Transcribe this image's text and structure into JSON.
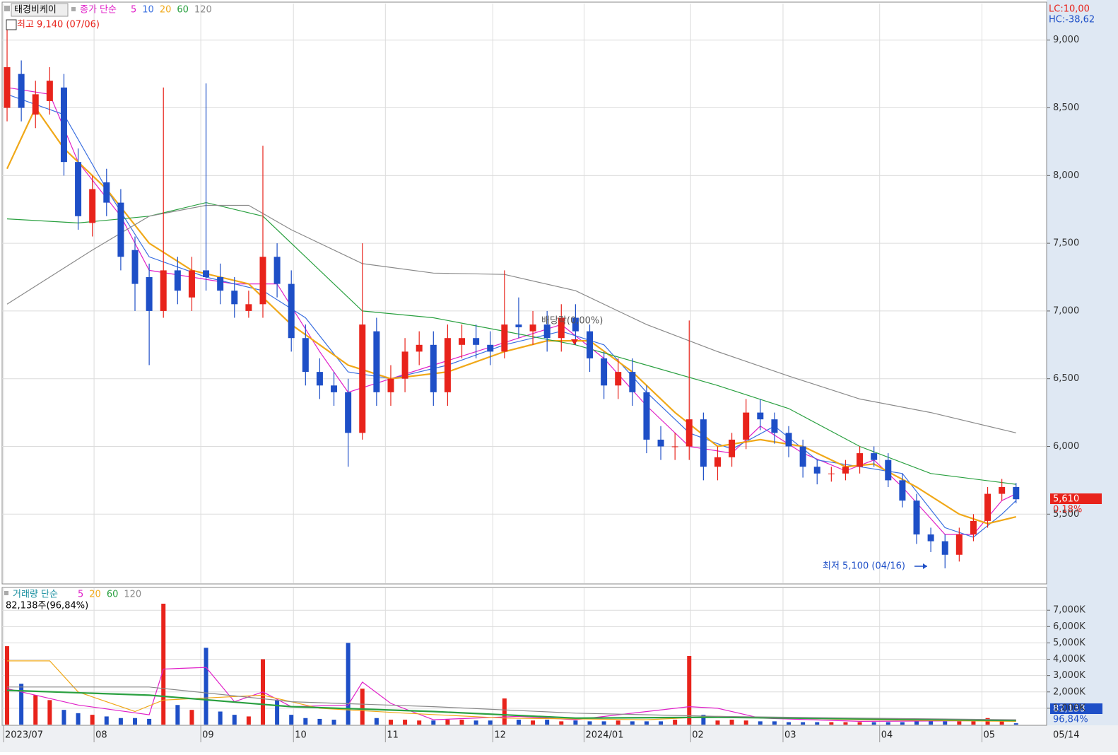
{
  "chart_data": [
    {
      "type": "candlestick",
      "title": "태경비케이",
      "legend_label": "종가 단순",
      "xlim": [
        -0.25,
        73.1
      ],
      "open": [
        8500,
        8750,
        8450,
        8550,
        8650,
        8100,
        7650,
        7950,
        7800,
        7450,
        7250,
        7000,
        7300,
        7100,
        7300,
        7250,
        7150,
        7000,
        7050,
        7400,
        7200,
        6800,
        6550,
        6450,
        6400,
        6100,
        6850,
        6400,
        6500,
        6700,
        6750,
        6400,
        6750,
        6800,
        6750,
        6700,
        6900,
        6850,
        6900,
        6800,
        6950,
        6850,
        6650,
        6450,
        6550,
        6400,
        6050,
        6000,
        6000,
        6200,
        5850,
        5920,
        6050,
        6250,
        6200,
        6100,
        6000,
        5850,
        5800,
        5800,
        5850,
        5950,
        5900,
        5750,
        5600,
        5350,
        5300,
        5200,
        5350,
        5450,
        5650,
        5700
      ],
      "high": [
        9140,
        8850,
        8700,
        8800,
        8750,
        8200,
        8000,
        8050,
        7900,
        7550,
        7350,
        8650,
        7400,
        7400,
        8680,
        7350,
        7250,
        7150,
        8220,
        7500,
        7300,
        6900,
        6650,
        6550,
        6500,
        7500,
        6950,
        6600,
        6800,
        6850,
        6850,
        6900,
        6900,
        6900,
        6850,
        7300,
        7100,
        7000,
        7000,
        7050,
        7050,
        6900,
        6700,
        6650,
        6650,
        6450,
        6150,
        6100,
        6930,
        6250,
        6000,
        6100,
        6350,
        6350,
        6250,
        6150,
        6050,
        5900,
        5850,
        5900,
        6000,
        6000,
        5950,
        5800,
        5650,
        5400,
        5350,
        5400,
        5500,
        5700,
        5760,
        5730
      ],
      "low": [
        8400,
        8400,
        8350,
        8450,
        8000,
        7600,
        7550,
        7700,
        7300,
        7000,
        6600,
        6950,
        7050,
        7000,
        7150,
        7050,
        6950,
        6950,
        6950,
        7100,
        6700,
        6450,
        6350,
        6300,
        5850,
        6050,
        6300,
        6300,
        6400,
        6600,
        6300,
        6300,
        6650,
        6650,
        6600,
        6650,
        6800,
        6750,
        6700,
        6700,
        6750,
        6550,
        6350,
        6350,
        6300,
        5950,
        5900,
        5900,
        5900,
        5750,
        5750,
        5850,
        5980,
        6120,
        6020,
        5920,
        5770,
        5720,
        5740,
        5750,
        5800,
        5850,
        5700,
        5550,
        5280,
        5220,
        5100,
        5150,
        5300,
        5400,
        5600,
        5580
      ],
      "close": [
        8800,
        8500,
        8600,
        8700,
        8100,
        7700,
        7900,
        7800,
        7400,
        7200,
        7000,
        7300,
        7150,
        7300,
        7250,
        7150,
        7050,
        7050,
        7400,
        7200,
        6800,
        6550,
        6450,
        6400,
        6100,
        6900,
        6400,
        6500,
        6700,
        6750,
        6400,
        6800,
        6800,
        6750,
        6700,
        6900,
        6880,
        6900,
        6800,
        6950,
        6850,
        6650,
        6450,
        6550,
        6400,
        6050,
        6000,
        6000,
        6200,
        5850,
        5920,
        6050,
        6250,
        6200,
        6100,
        6000,
        5850,
        5800,
        5800,
        5850,
        5950,
        5900,
        5750,
        5600,
        5350,
        5300,
        5200,
        5350,
        5450,
        5650,
        5700,
        5610
      ],
      "up_color": "#e8231b",
      "down_color": "#1e4fc7",
      "series": [
        {
          "name": "5",
          "color": "#e020c8",
          "x": [
            0,
            3,
            5,
            8,
            10,
            13,
            16,
            19,
            22,
            24,
            27,
            30,
            33,
            36,
            39,
            42,
            45,
            48,
            51,
            53,
            56,
            59,
            61,
            63,
            66,
            68,
            70,
            71
          ],
          "values": [
            8650,
            8600,
            8100,
            7700,
            7300,
            7250,
            7200,
            7200,
            6700,
            6400,
            6500,
            6600,
            6700,
            6800,
            6900,
            6650,
            6300,
            6000,
            5950,
            6150,
            5950,
            5820,
            5900,
            5700,
            5350,
            5350,
            5600,
            5650
          ]
        },
        {
          "name": "10",
          "color": "#3a6fe0",
          "x": [
            0,
            4,
            7,
            10,
            14,
            18,
            21,
            24,
            27,
            31,
            35,
            39,
            42,
            45,
            48,
            51,
            54,
            57,
            60,
            63,
            66,
            68,
            70,
            71
          ],
          "values": [
            8600,
            8450,
            7900,
            7400,
            7250,
            7150,
            6950,
            6550,
            6500,
            6600,
            6750,
            6850,
            6750,
            6400,
            6100,
            5980,
            6150,
            5900,
            5850,
            5800,
            5400,
            5330,
            5500,
            5600
          ]
        },
        {
          "name": "20",
          "color": "#f0a818",
          "x": [
            0,
            2,
            4,
            7,
            10,
            13,
            17,
            20,
            24,
            27,
            31,
            35,
            38,
            41,
            44,
            47,
            50,
            53,
            56,
            59,
            61,
            64,
            67,
            69,
            71
          ],
          "values": [
            8050,
            8500,
            8200,
            7900,
            7500,
            7300,
            7200,
            6900,
            6600,
            6500,
            6550,
            6700,
            6780,
            6780,
            6550,
            6250,
            6000,
            6050,
            6000,
            5850,
            5870,
            5700,
            5500,
            5430,
            5480
          ]
        },
        {
          "name": "60",
          "color": "#2aa040",
          "x": [
            0,
            5,
            10,
            14,
            18,
            22,
            25,
            30,
            35,
            40,
            45,
            50,
            55,
            60,
            65,
            71
          ],
          "values": [
            7680,
            7650,
            7700,
            7800,
            7700,
            7300,
            7000,
            6950,
            6850,
            6750,
            6600,
            6450,
            6280,
            6000,
            5800,
            5720
          ]
        },
        {
          "name": "120",
          "color": "#8a8a8a",
          "x": [
            0,
            6,
            10,
            14,
            17,
            20,
            25,
            30,
            35,
            40,
            45,
            50,
            55,
            60,
            65,
            71
          ],
          "values": [
            7050,
            7450,
            7700,
            7780,
            7780,
            7600,
            7350,
            7280,
            7270,
            7150,
            6900,
            6700,
            6520,
            6350,
            6250,
            6100
          ]
        }
      ],
      "ylim": [
        4990,
        9270
      ],
      "yticks": [
        {
          "value": 5500,
          "label": "5,500"
        },
        {
          "value": 6000,
          "label": "6,000"
        },
        {
          "value": 6500,
          "label": "6,500"
        },
        {
          "value": 7000,
          "label": "7,000"
        },
        {
          "value": 7500,
          "label": "7,500"
        },
        {
          "value": 8000,
          "label": "8,000"
        },
        {
          "value": 8500,
          "label": "8,500"
        },
        {
          "value": 9000,
          "label": "9,000"
        }
      ],
      "high_annotation": "최고 9,140 (07/06)",
      "low_annotation": "최저 5,100 (04/16)",
      "dividend_annotation": "배당락(0,00%)",
      "lc_label": "LC:10,00",
      "hc_label": "HC:-38,62",
      "last_price_label": "5,610",
      "change_label": "0.18%"
    },
    {
      "type": "bar",
      "title": "거래량 단순",
      "info": "82,138주(96,84%)",
      "values": [
        4800,
        2500,
        1800,
        1500,
        900,
        700,
        600,
        500,
        400,
        400,
        350,
        7400,
        1200,
        900,
        4700,
        800,
        600,
        500,
        4000,
        1500,
        600,
        400,
        350,
        300,
        5000,
        2200,
        400,
        300,
        300,
        250,
        250,
        300,
        300,
        250,
        250,
        1600,
        300,
        250,
        300,
        200,
        250,
        200,
        200,
        250,
        200,
        200,
        200,
        300,
        4200,
        600,
        250,
        300,
        250,
        200,
        200,
        150,
        150,
        150,
        150,
        150,
        150,
        150,
        150,
        150,
        200,
        250,
        200,
        200,
        200,
        400,
        250,
        82.138
      ],
      "series": [
        {
          "name": "5",
          "color": "#e020c8",
          "x": [
            0,
            5,
            10,
            11,
            14,
            16,
            18,
            20,
            24,
            25,
            27,
            30,
            36,
            40,
            48,
            50,
            53,
            60,
            71
          ],
          "values": [
            2200,
            1200,
            600,
            3400,
            3500,
            1400,
            2000,
            1100,
            1200,
            2600,
            1300,
            300,
            500,
            300,
            1100,
            1000,
            400,
            200,
            250
          ]
        },
        {
          "name": "20",
          "color": "#f0a818",
          "x": [
            0,
            3,
            5,
            9,
            11,
            18,
            22,
            28,
            35,
            45,
            50,
            60,
            71
          ],
          "values": [
            3900,
            3900,
            2000,
            800,
            1500,
            1800,
            1000,
            700,
            400,
            300,
            500,
            300,
            200
          ]
        },
        {
          "name": "60",
          "color": "#2aa040",
          "x": [
            0,
            10,
            20,
            30,
            40,
            50,
            60,
            71
          ],
          "values": [
            2100,
            1800,
            1100,
            800,
            400,
            450,
            350,
            250
          ]
        },
        {
          "name": "120",
          "color": "#8a8a8a",
          "x": [
            0,
            10,
            20,
            30,
            40,
            50,
            60,
            71
          ],
          "values": [
            2300,
            2300,
            1400,
            1100,
            700,
            500,
            400,
            300
          ]
        }
      ],
      "ylim": [
        0,
        8350
      ],
      "yticks": [
        {
          "value": 1000,
          "label": "1,000K"
        },
        {
          "value": 2000,
          "label": "2,000K"
        },
        {
          "value": 3000,
          "label": "3,000K"
        },
        {
          "value": 4000,
          "label": "4,000K"
        },
        {
          "value": 5000,
          "label": "5,000K"
        },
        {
          "value": 6000,
          "label": "6,000K"
        },
        {
          "value": 7000,
          "label": "7,000K"
        }
      ],
      "xticks": [
        {
          "value": -0.25,
          "label": "2023/07"
        },
        {
          "value": 6.12,
          "label": "08"
        },
        {
          "value": 13.63,
          "label": "09"
        },
        {
          "value": 20.15,
          "label": "10"
        },
        {
          "value": 26.62,
          "label": "11"
        },
        {
          "value": 34.18,
          "label": "12"
        },
        {
          "value": 40.6,
          "label": "2024/01"
        },
        {
          "value": 48.1,
          "label": "02"
        },
        {
          "value": 54.6,
          "label": "03"
        },
        {
          "value": 61.4,
          "label": "04"
        },
        {
          "value": 68.6,
          "label": "05"
        }
      ],
      "x_end_label": "05/14",
      "last_value_label": "82,138",
      "ratio_label": "96,84%"
    }
  ]
}
